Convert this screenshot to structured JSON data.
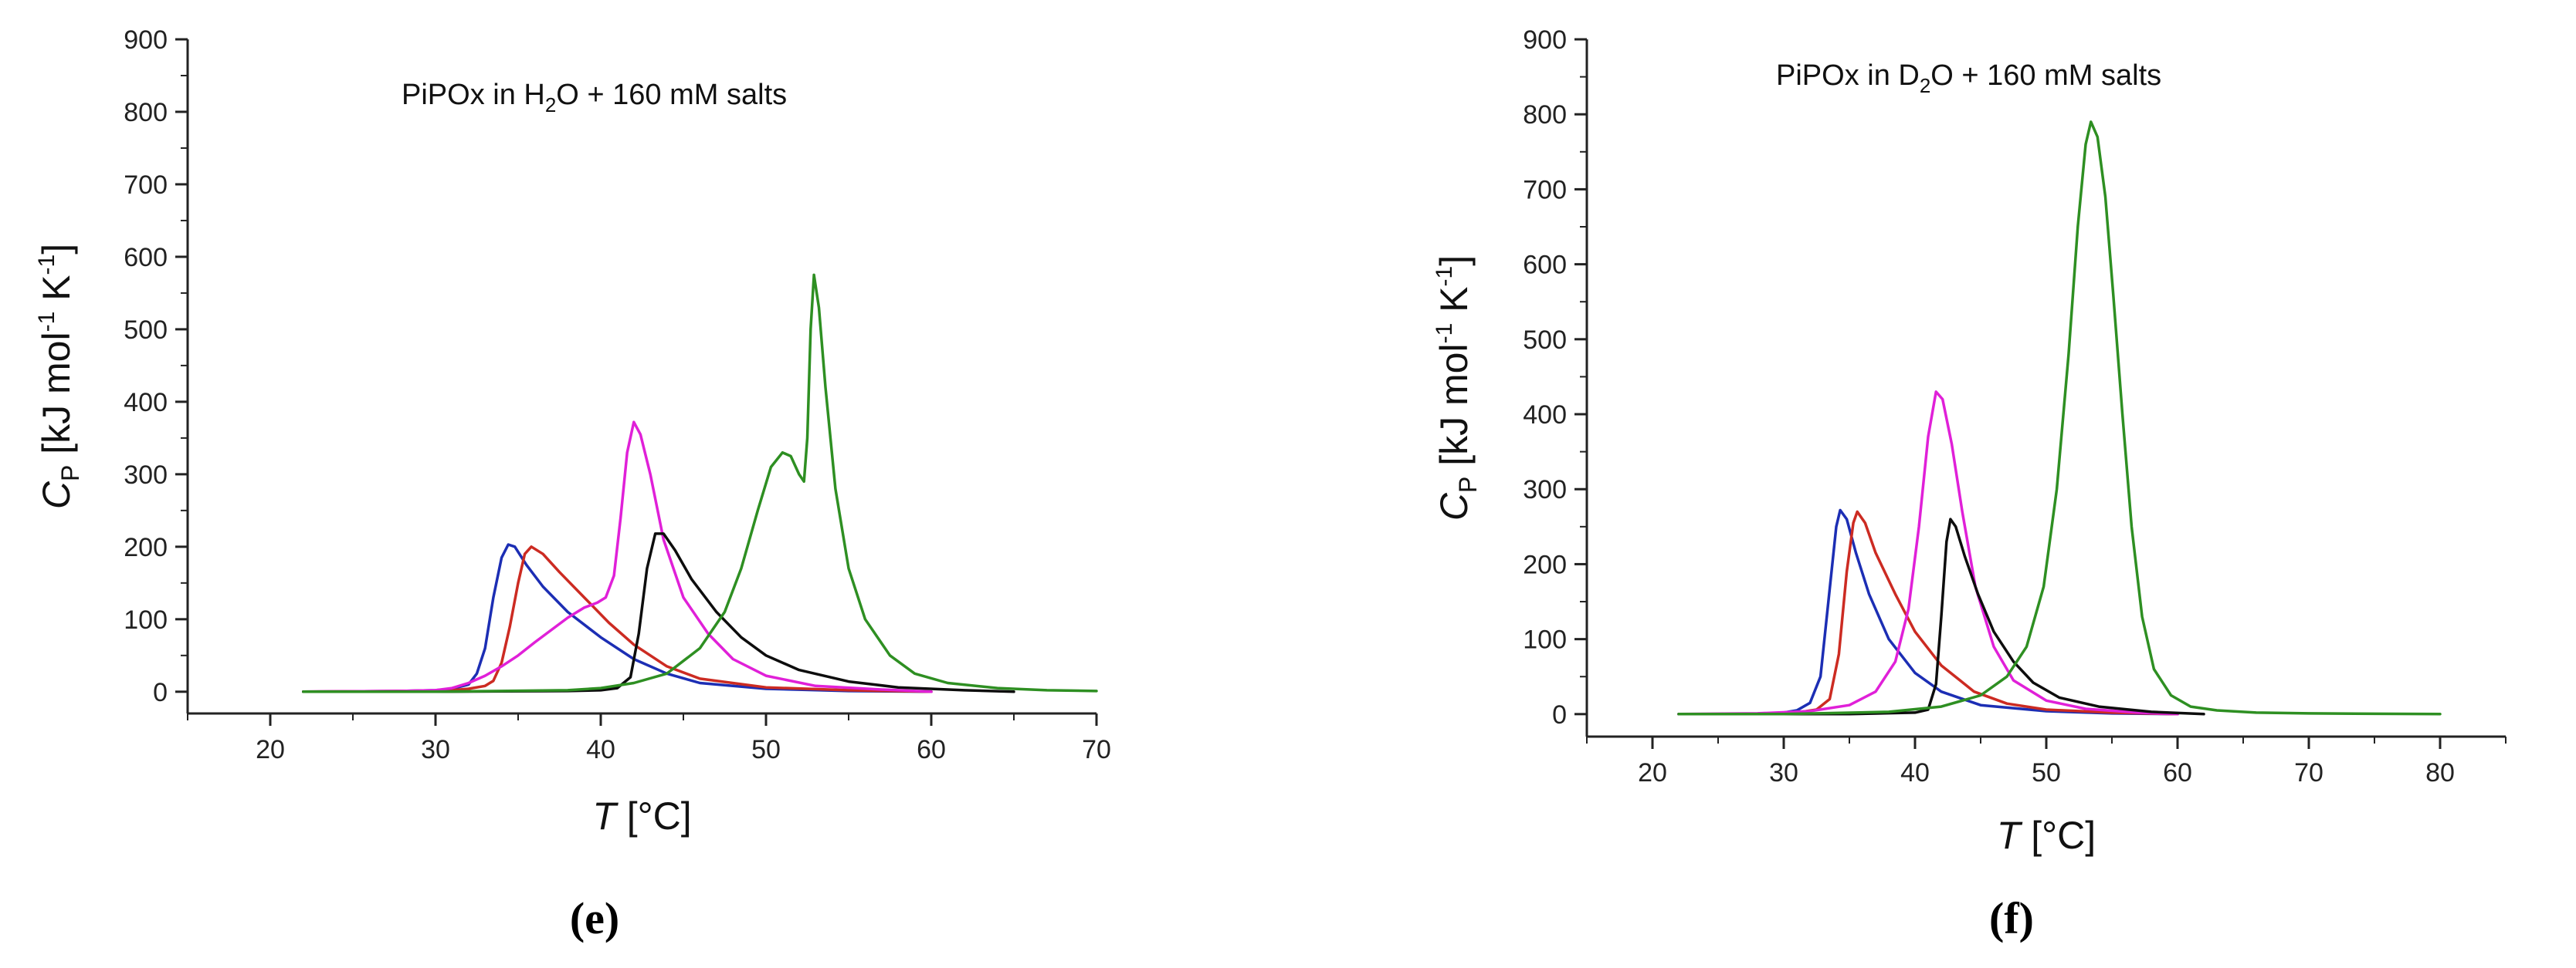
{
  "chart_data": [
    {
      "type": "line",
      "panel_label": "(e)",
      "title": "PiPOx in H₂O + 160 mM salts",
      "title_parts": [
        "PiPOx in H",
        "2",
        "O + 160 mM salts"
      ],
      "xlabel": "T [°C]",
      "xlabel_parts": [
        "T",
        " [°C]"
      ],
      "ylabel": "C_P [kJ mol⁻¹ K⁻¹]",
      "ylabel_parts": [
        "C",
        "P",
        " [kJ mol",
        "-1",
        " K",
        "-1",
        "]"
      ],
      "xlim": [
        15,
        70
      ],
      "ylim": [
        -30,
        900
      ],
      "xticks": [
        20,
        30,
        40,
        50,
        60,
        70
      ],
      "yticks": [
        0,
        100,
        200,
        300,
        400,
        500,
        600,
        700,
        800,
        900
      ],
      "grid": false,
      "series": [
        {
          "color": "#1c2eb4",
          "points": [
            [
              22,
              0
            ],
            [
              28,
              1
            ],
            [
              30,
              2
            ],
            [
              31,
              4
            ],
            [
              32,
              10
            ],
            [
              32.5,
              25
            ],
            [
              33,
              60
            ],
            [
              33.5,
              130
            ],
            [
              34,
              185
            ],
            [
              34.4,
              203
            ],
            [
              34.8,
              200
            ],
            [
              35.5,
              175
            ],
            [
              36.5,
              145
            ],
            [
              38,
              110
            ],
            [
              40,
              75
            ],
            [
              42,
              45
            ],
            [
              44,
              25
            ],
            [
              46,
              12
            ],
            [
              50,
              4
            ],
            [
              55,
              1
            ],
            [
              60,
              0
            ]
          ]
        },
        {
          "color": "#cc2b22",
          "points": [
            [
              22,
              0
            ],
            [
              28,
              1
            ],
            [
              31,
              2
            ],
            [
              32,
              4
            ],
            [
              33,
              8
            ],
            [
              33.5,
              15
            ],
            [
              34,
              40
            ],
            [
              34.5,
              90
            ],
            [
              35,
              150
            ],
            [
              35.4,
              190
            ],
            [
              35.8,
              200
            ],
            [
              36.5,
              190
            ],
            [
              37.5,
              165
            ],
            [
              39,
              130
            ],
            [
              40.5,
              95
            ],
            [
              42,
              65
            ],
            [
              44,
              35
            ],
            [
              46,
              18
            ],
            [
              50,
              6
            ],
            [
              55,
              2
            ],
            [
              60,
              0
            ]
          ]
        },
        {
          "color": "#e020d8",
          "points": [
            [
              22,
              0
            ],
            [
              28,
              1
            ],
            [
              30,
              2
            ],
            [
              31,
              5
            ],
            [
              32,
              12
            ],
            [
              33,
              22
            ],
            [
              34,
              35
            ],
            [
              35,
              50
            ],
            [
              36,
              68
            ],
            [
              37,
              85
            ],
            [
              38,
              102
            ],
            [
              39,
              116
            ],
            [
              39.8,
              123
            ],
            [
              40.3,
              130
            ],
            [
              40.8,
              160
            ],
            [
              41.2,
              240
            ],
            [
              41.6,
              330
            ],
            [
              42,
              372
            ],
            [
              42.4,
              355
            ],
            [
              43,
              300
            ],
            [
              43.8,
              210
            ],
            [
              45,
              130
            ],
            [
              46.5,
              80
            ],
            [
              48,
              45
            ],
            [
              50,
              22
            ],
            [
              53,
              8
            ],
            [
              57,
              3
            ],
            [
              60,
              0
            ]
          ]
        },
        {
          "color": "#0d0d0d",
          "points": [
            [
              22,
              0
            ],
            [
              30,
              0
            ],
            [
              38,
              1
            ],
            [
              40,
              2
            ],
            [
              41,
              5
            ],
            [
              41.8,
              20
            ],
            [
              42.3,
              80
            ],
            [
              42.8,
              170
            ],
            [
              43.3,
              218
            ],
            [
              43.8,
              218
            ],
            [
              44.5,
              195
            ],
            [
              45.5,
              155
            ],
            [
              47,
              110
            ],
            [
              48.5,
              75
            ],
            [
              50,
              50
            ],
            [
              52,
              30
            ],
            [
              55,
              14
            ],
            [
              58,
              6
            ],
            [
              62,
              2
            ],
            [
              65,
              0
            ]
          ]
        },
        {
          "color": "#2e8f22",
          "points": [
            [
              22,
              0
            ],
            [
              30,
              0
            ],
            [
              38,
              2
            ],
            [
              40,
              5
            ],
            [
              42,
              12
            ],
            [
              44,
              25
            ],
            [
              46,
              60
            ],
            [
              47.5,
              110
            ],
            [
              48.5,
              170
            ],
            [
              49.5,
              250
            ],
            [
              50.3,
              310
            ],
            [
              51,
              330
            ],
            [
              51.5,
              325
            ],
            [
              52,
              300
            ],
            [
              52.3,
              290
            ],
            [
              52.5,
              350
            ],
            [
              52.7,
              500
            ],
            [
              52.9,
              575
            ],
            [
              53.2,
              530
            ],
            [
              53.6,
              420
            ],
            [
              54.2,
              280
            ],
            [
              55,
              170
            ],
            [
              56,
              100
            ],
            [
              57.5,
              50
            ],
            [
              59,
              25
            ],
            [
              61,
              12
            ],
            [
              64,
              5
            ],
            [
              67,
              2
            ],
            [
              70,
              1
            ]
          ]
        }
      ]
    },
    {
      "type": "line",
      "panel_label": "(f)",
      "title": "PiPOx in D₂O + 160 mM salts",
      "title_parts": [
        "PiPOx in D",
        "2",
        "O + 160 mM salts"
      ],
      "xlabel": "T [°C]",
      "xlabel_parts": [
        "T",
        " [°C]"
      ],
      "ylabel": "C_P [kJ mol⁻¹ K⁻¹]",
      "ylabel_parts": [
        "C",
        "P",
        " [kJ mol",
        "-1",
        " K",
        "-1",
        "]"
      ],
      "xlim": [
        15,
        85
      ],
      "ylim": [
        -30,
        900
      ],
      "xticks": [
        20,
        30,
        40,
        50,
        60,
        70,
        80
      ],
      "yticks": [
        0,
        100,
        200,
        300,
        400,
        500,
        600,
        700,
        800,
        900
      ],
      "grid": false,
      "series": [
        {
          "color": "#1c2eb4",
          "points": [
            [
              22,
              0
            ],
            [
              28,
              0
            ],
            [
              30,
              2
            ],
            [
              31,
              5
            ],
            [
              32,
              15
            ],
            [
              32.8,
              50
            ],
            [
              33.4,
              150
            ],
            [
              34,
              250
            ],
            [
              34.3,
              272
            ],
            [
              34.8,
              260
            ],
            [
              35.5,
              215
            ],
            [
              36.5,
              160
            ],
            [
              38,
              100
            ],
            [
              40,
              55
            ],
            [
              42,
              30
            ],
            [
              45,
              12
            ],
            [
              50,
              4
            ],
            [
              55,
              1
            ],
            [
              60,
              0
            ]
          ]
        },
        {
          "color": "#cc2b22",
          "points": [
            [
              22,
              0
            ],
            [
              28,
              0
            ],
            [
              31,
              2
            ],
            [
              32.5,
              6
            ],
            [
              33.5,
              20
            ],
            [
              34.2,
              80
            ],
            [
              34.8,
              190
            ],
            [
              35.3,
              255
            ],
            [
              35.6,
              270
            ],
            [
              36.2,
              255
            ],
            [
              37,
              215
            ],
            [
              38.5,
              160
            ],
            [
              40,
              110
            ],
            [
              42,
              65
            ],
            [
              44.5,
              30
            ],
            [
              47,
              14
            ],
            [
              50,
              6
            ],
            [
              55,
              2
            ],
            [
              60,
              0
            ]
          ]
        },
        {
          "color": "#e020d8",
          "points": [
            [
              22,
              0
            ],
            [
              28,
              1
            ],
            [
              32,
              4
            ],
            [
              35,
              12
            ],
            [
              37,
              30
            ],
            [
              38.5,
              70
            ],
            [
              39.5,
              140
            ],
            [
              40.3,
              250
            ],
            [
              41,
              370
            ],
            [
              41.6,
              430
            ],
            [
              42.1,
              420
            ],
            [
              42.8,
              360
            ],
            [
              43.6,
              270
            ],
            [
              44.6,
              170
            ],
            [
              46,
              90
            ],
            [
              47.5,
              45
            ],
            [
              50,
              18
            ],
            [
              53,
              7
            ],
            [
              57,
              2
            ],
            [
              60,
              0
            ]
          ]
        },
        {
          "color": "#0d0d0d",
          "points": [
            [
              22,
              0
            ],
            [
              35,
              0
            ],
            [
              40,
              2
            ],
            [
              41,
              6
            ],
            [
              41.6,
              40
            ],
            [
              42,
              130
            ],
            [
              42.4,
              230
            ],
            [
              42.7,
              260
            ],
            [
              43.1,
              250
            ],
            [
              43.8,
              210
            ],
            [
              44.8,
              160
            ],
            [
              46,
              110
            ],
            [
              47.5,
              70
            ],
            [
              49,
              42
            ],
            [
              51,
              22
            ],
            [
              54,
              10
            ],
            [
              58,
              3
            ],
            [
              62,
              0
            ]
          ]
        },
        {
          "color": "#2e8f22",
          "points": [
            [
              22,
              0
            ],
            [
              30,
              0
            ],
            [
              38,
              3
            ],
            [
              42,
              10
            ],
            [
              45,
              25
            ],
            [
              47,
              50
            ],
            [
              48.5,
              90
            ],
            [
              49.8,
              170
            ],
            [
              50.8,
              300
            ],
            [
              51.7,
              480
            ],
            [
              52.4,
              650
            ],
            [
              53,
              760
            ],
            [
              53.4,
              790
            ],
            [
              53.9,
              770
            ],
            [
              54.5,
              690
            ],
            [
              55.1,
              560
            ],
            [
              55.8,
              400
            ],
            [
              56.5,
              250
            ],
            [
              57.3,
              130
            ],
            [
              58.2,
              60
            ],
            [
              59.5,
              25
            ],
            [
              61,
              10
            ],
            [
              63,
              5
            ],
            [
              66,
              2
            ],
            [
              70,
              1
            ],
            [
              80,
              0
            ]
          ]
        }
      ]
    }
  ]
}
